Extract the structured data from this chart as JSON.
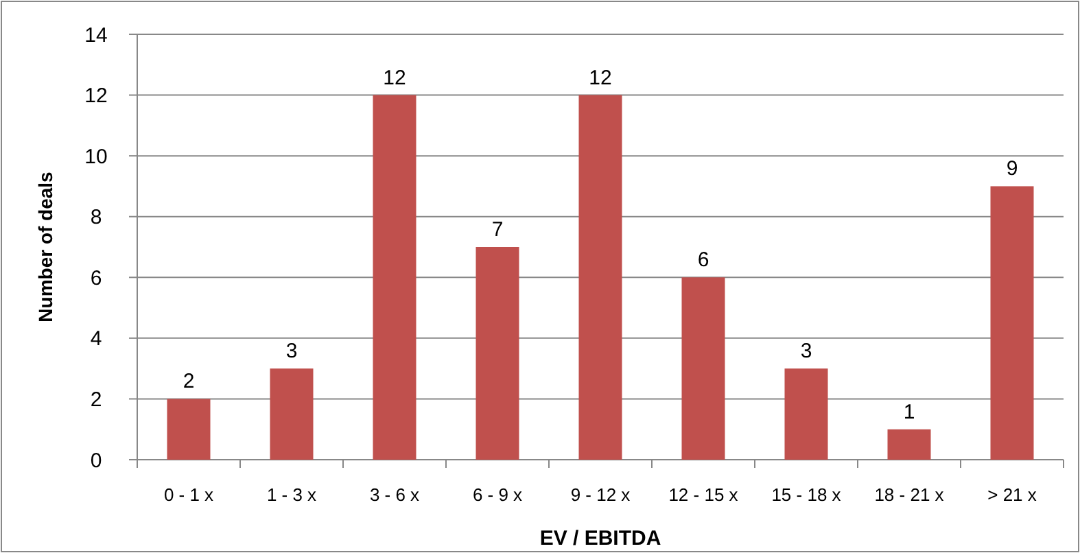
{
  "chart_data": {
    "type": "bar",
    "xlabel": "EV / EBITDA",
    "ylabel": "Number of deals",
    "categories": [
      "0 - 1 x",
      "1 - 3 x",
      "3 - 6 x",
      "6 - 9 x",
      "9 - 12 x",
      "12 - 15 x",
      "15 - 18 x",
      "18 - 21 x",
      "> 21 x"
    ],
    "values": [
      2,
      3,
      12,
      7,
      12,
      6,
      3,
      1,
      9
    ],
    "color": "#c0504d",
    "ylim": [
      0,
      14
    ],
    "yticks": [
      0,
      2,
      4,
      6,
      8,
      10,
      12,
      14
    ],
    "grid": "y",
    "data_labels": true
  }
}
